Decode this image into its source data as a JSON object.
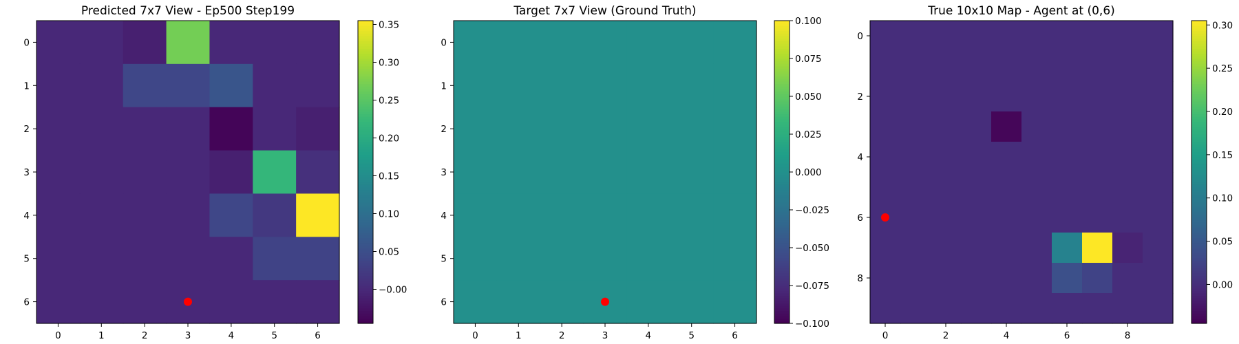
{
  "chart_data": [
    {
      "type": "heatmap",
      "title": "Predicted 7x7 View - Ep500 Step199",
      "xticks": [
        "0",
        "1",
        "2",
        "3",
        "4",
        "5",
        "6"
      ],
      "yticks": [
        "0",
        "1",
        "2",
        "3",
        "4",
        "5",
        "6"
      ],
      "grid_size": [
        7,
        7
      ],
      "z": [
        [
          0.0,
          0.0,
          -0.01,
          0.27,
          0.0,
          0.0,
          0.0
        ],
        [
          0.0,
          0.0,
          0.04,
          0.04,
          0.06,
          0.0,
          0.0
        ],
        [
          0.0,
          0.0,
          0.0,
          0.0,
          -0.04,
          0.0,
          -0.01
        ],
        [
          0.0,
          0.0,
          0.0,
          0.0,
          -0.01,
          0.22,
          0.01
        ],
        [
          0.0,
          0.0,
          0.0,
          0.0,
          0.04,
          0.02,
          0.355
        ],
        [
          0.0,
          0.0,
          0.0,
          0.0,
          0.0,
          0.035,
          0.035
        ],
        [
          0.0,
          0.0,
          0.0,
          0.0,
          0.0,
          0.0,
          0.0
        ]
      ],
      "vmin": -0.045,
      "vmax": 0.355,
      "colorbar_ticks": [
        "−0.00",
        "0.05",
        "0.10",
        "0.15",
        "0.20",
        "0.25",
        "0.30",
        "0.35"
      ],
      "colorbar_tick_values": [
        0,
        0.05,
        0.1,
        0.15,
        0.2,
        0.25,
        0.3,
        0.35
      ],
      "marker": {
        "x": 3,
        "y": 6,
        "color": "#ff0000"
      }
    },
    {
      "type": "heatmap",
      "title": "Target 7x7 View (Ground Truth)",
      "xticks": [
        "0",
        "1",
        "2",
        "3",
        "4",
        "5",
        "6"
      ],
      "yticks": [
        "0",
        "1",
        "2",
        "3",
        "4",
        "5",
        "6"
      ],
      "grid_size": [
        7,
        7
      ],
      "z": [
        [
          0,
          0,
          0,
          0,
          0,
          0,
          0
        ],
        [
          0,
          0,
          0,
          0,
          0,
          0,
          0
        ],
        [
          0,
          0,
          0,
          0,
          0,
          0,
          0
        ],
        [
          0,
          0,
          0,
          0,
          0,
          0,
          0
        ],
        [
          0,
          0,
          0,
          0,
          0,
          0,
          0
        ],
        [
          0,
          0,
          0,
          0,
          0,
          0,
          0
        ],
        [
          0,
          0,
          0,
          0,
          0,
          0,
          0
        ]
      ],
      "vmin": -0.1,
      "vmax": 0.1,
      "colorbar_ticks": [
        "−0.100",
        "−0.075",
        "−0.050",
        "−0.025",
        "0.000",
        "0.025",
        "0.050",
        "0.075",
        "0.100"
      ],
      "colorbar_tick_values": [
        -0.1,
        -0.075,
        -0.05,
        -0.025,
        0,
        0.025,
        0.05,
        0.075,
        0.1
      ],
      "marker": {
        "x": 3,
        "y": 6,
        "color": "#ff0000"
      }
    },
    {
      "type": "heatmap",
      "title": "True 10x10 Map - Agent at (0,6)",
      "xticks": [
        "0",
        "2",
        "4",
        "6",
        "8"
      ],
      "xtick_values": [
        0,
        2,
        4,
        6,
        8
      ],
      "yticks": [
        "0",
        "2",
        "4",
        "6",
        "8"
      ],
      "ytick_values": [
        0,
        2,
        4,
        6,
        8
      ],
      "grid_size": [
        10,
        10
      ],
      "z": [
        [
          0,
          0,
          0,
          0,
          0,
          0,
          0,
          0,
          0,
          0
        ],
        [
          0,
          0,
          0,
          0,
          0,
          0,
          0,
          0,
          0,
          0
        ],
        [
          0,
          0,
          0,
          0,
          0,
          0,
          0,
          0,
          0,
          0
        ],
        [
          0,
          0,
          0,
          0,
          -0.04,
          0,
          0,
          0,
          0,
          0
        ],
        [
          0,
          0,
          0,
          0,
          0,
          0,
          0,
          0,
          0,
          0
        ],
        [
          0,
          0,
          0,
          0,
          0,
          0,
          0,
          0,
          0,
          0
        ],
        [
          0,
          0,
          0,
          0,
          0,
          0,
          0,
          0,
          0,
          0
        ],
        [
          0,
          0,
          0,
          0,
          0,
          0,
          0.11,
          0.305,
          -0.01,
          0
        ],
        [
          0,
          0,
          0,
          0,
          0,
          0,
          0.04,
          0.025,
          0,
          0
        ],
        [
          0,
          0,
          0,
          0,
          0,
          0,
          0,
          0,
          0,
          0
        ]
      ],
      "vmin": -0.045,
      "vmax": 0.305,
      "colorbar_ticks": [
        "0.00",
        "0.05",
        "0.10",
        "0.15",
        "0.20",
        "0.25",
        "0.30"
      ],
      "colorbar_tick_values": [
        0,
        0.05,
        0.1,
        0.15,
        0.2,
        0.25,
        0.3
      ],
      "marker": {
        "x": 0,
        "y": 6,
        "color": "#ff0000"
      }
    }
  ]
}
